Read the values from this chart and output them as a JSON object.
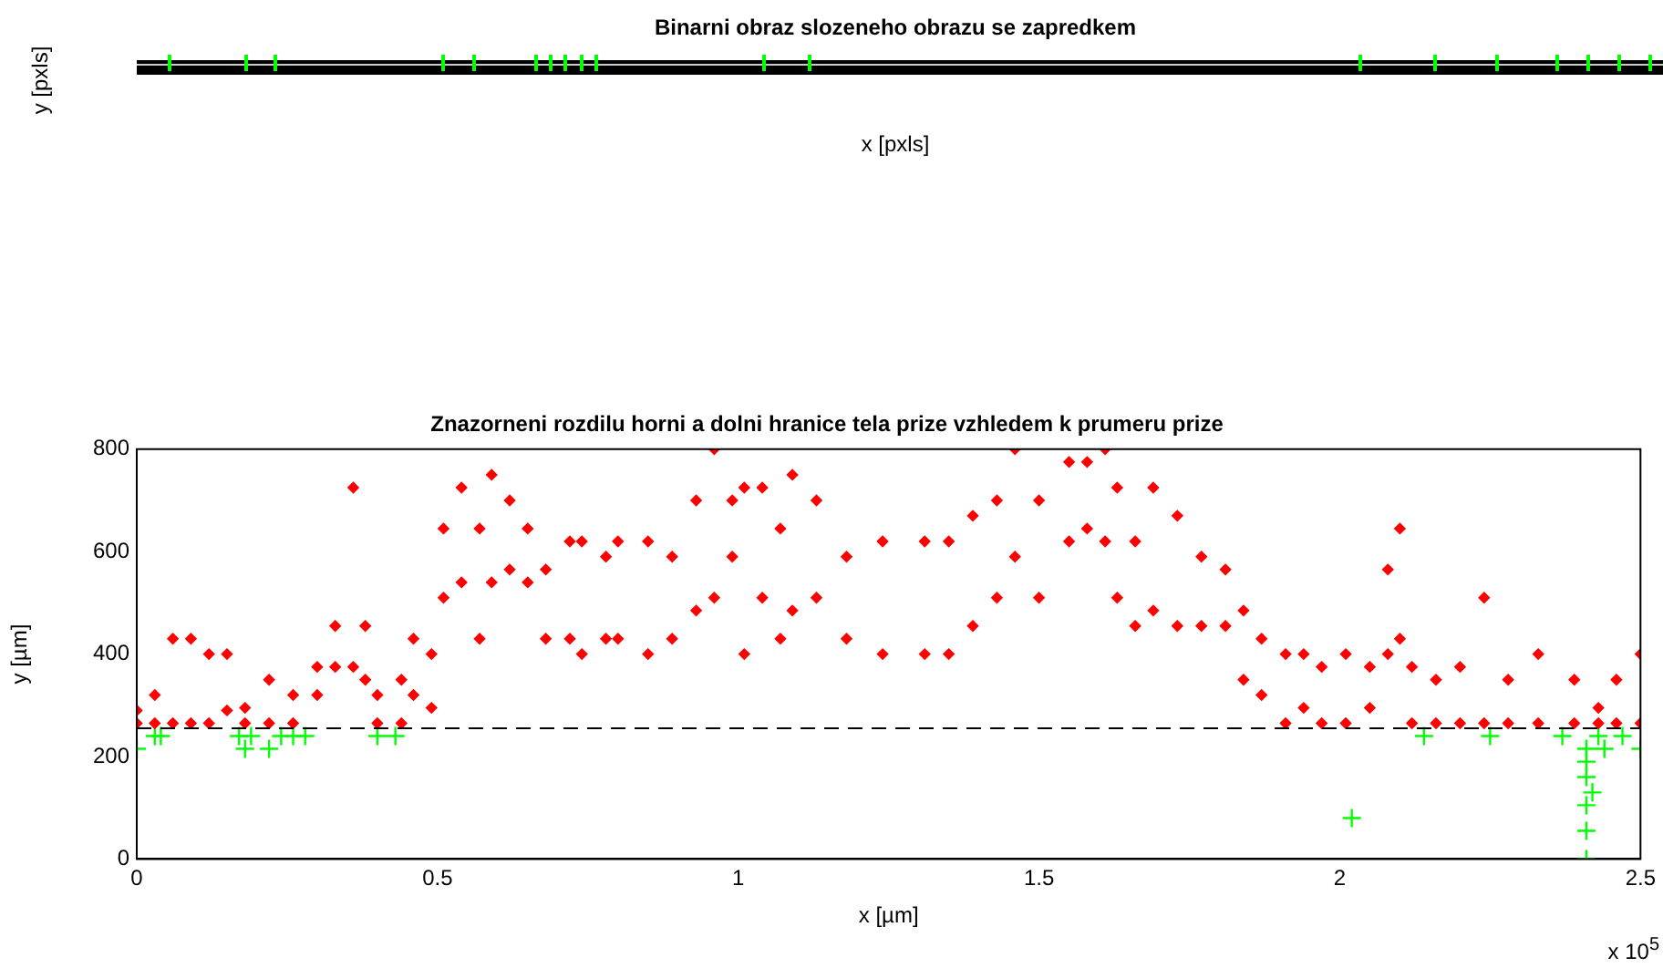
{
  "chart_data": [
    {
      "type": "other",
      "title": "Binarni obraz slozeneho obrazu se zapredkem",
      "xlabel": "x [pxls]",
      "ylabel": "y [pxls]"
    },
    {
      "type": "scatter",
      "title": "Znazorneni rozdilu horni a dolni hranice tela prize vzhledem k prumeru prize",
      "xlabel": "x [µm]",
      "ylabel": "y [µm]",
      "xlim": [
        0,
        2.5
      ],
      "ylim": [
        0,
        800
      ],
      "xticks": [
        0,
        0.5,
        1,
        1.5,
        2,
        2.5
      ],
      "yticks": [
        0,
        200,
        400,
        600,
        800
      ],
      "grid": false,
      "legend": false,
      "annotations": [
        "x 10$^{5}$"
      ],
      "ref_lines": [
        {
          "axis": "y",
          "value": 255,
          "color": "#000000",
          "line_style": "dashed"
        }
      ],
      "series": [
        {
          "color": "#ff0000",
          "marker": "diamond",
          "x": [
            0,
            0,
            0.03,
            0.03,
            0.06,
            0.06,
            0.09,
            0.09,
            0.12,
            0.12,
            0.15,
            0.15,
            0.18,
            0.18,
            0.22,
            0.22,
            0.26,
            0.26,
            0.3,
            0.3,
            0.33,
            0.33,
            0.36,
            0.36,
            0.38,
            0.38,
            0.4,
            0.4,
            0.44,
            0.44,
            0.46,
            0.46,
            0.49,
            0.49,
            0.51,
            0.51,
            0.54,
            0.54,
            0.57,
            0.57,
            0.59,
            0.59,
            0.62,
            0.62,
            0.65,
            0.65,
            0.68,
            0.68,
            0.72,
            0.72,
            0.74,
            0.74,
            0.78,
            0.78,
            0.8,
            0.8,
            0.85,
            0.85,
            0.89,
            0.89,
            0.93,
            0.93,
            0.96,
            0.96,
            0.99,
            0.99,
            1.01,
            1.01,
            1.04,
            1.04,
            1.07,
            1.07,
            1.09,
            1.09,
            1.13,
            1.13,
            1.18,
            1.18,
            1.24,
            1.24,
            1.31,
            1.31,
            1.35,
            1.35,
            1.39,
            1.39,
            1.43,
            1.43,
            1.46,
            1.46,
            1.5,
            1.5,
            1.55,
            1.55,
            1.58,
            1.58,
            1.61,
            1.61,
            1.63,
            1.63,
            1.66,
            1.66,
            1.69,
            1.69,
            1.73,
            1.73,
            1.77,
            1.77,
            1.81,
            1.81,
            1.84,
            1.84,
            1.87,
            1.87,
            1.91,
            1.91,
            1.94,
            1.94,
            1.97,
            1.97,
            2.01,
            2.01,
            2.05,
            2.05,
            2.08,
            2.08,
            2.1,
            2.1,
            2.12,
            2.12,
            2.16,
            2.16,
            2.2,
            2.2,
            2.24,
            2.24,
            2.28,
            2.28,
            2.33,
            2.33,
            2.39,
            2.39,
            2.43,
            2.43,
            2.46,
            2.46,
            2.5,
            2.5
          ],
          "values": [
            290,
            265,
            320,
            265,
            430,
            265,
            430,
            265,
            400,
            265,
            400,
            290,
            295,
            265,
            350,
            265,
            320,
            265,
            375,
            320,
            455,
            375,
            725,
            375,
            455,
            350,
            320,
            265,
            350,
            265,
            430,
            320,
            400,
            295,
            645,
            510,
            725,
            540,
            645,
            430,
            750,
            540,
            700,
            565,
            645,
            540,
            565,
            430,
            620,
            430,
            620,
            400,
            590,
            430,
            620,
            430,
            620,
            400,
            590,
            430,
            700,
            485,
            800,
            510,
            700,
            590,
            725,
            400,
            725,
            510,
            645,
            430,
            750,
            485,
            700,
            510,
            590,
            430,
            620,
            400,
            620,
            400,
            620,
            400,
            670,
            455,
            700,
            510,
            800,
            590,
            700,
            510,
            775,
            620,
            775,
            645,
            800,
            620,
            725,
            510,
            620,
            455,
            725,
            485,
            670,
            455,
            590,
            455,
            565,
            455,
            485,
            350,
            430,
            320,
            400,
            265,
            400,
            295,
            375,
            265,
            400,
            265,
            375,
            295,
            565,
            400,
            645,
            430,
            375,
            265,
            350,
            265,
            375,
            265,
            510,
            265,
            350,
            265,
            400,
            265,
            350,
            265,
            295,
            265,
            350,
            265,
            400,
            265
          ]
        },
        {
          "color": "#00ff00",
          "marker": "cross",
          "x": [
            0,
            0.03,
            0.04,
            0.17,
            0.18,
            0.19,
            0.22,
            0.24,
            0.26,
            0.28,
            0.4,
            0.43,
            2.02,
            2.14,
            2.25,
            2.37,
            2.41,
            2.41,
            2.41,
            2.42,
            2.41,
            2.41,
            2.41,
            2.43,
            2.44,
            2.47,
            2.5
          ],
          "values": [
            215,
            240,
            240,
            240,
            215,
            240,
            215,
            240,
            240,
            240,
            240,
            240,
            80,
            240,
            240,
            240,
            215,
            190,
            160,
            130,
            105,
            55,
            0,
            240,
            215,
            240,
            215
          ]
        }
      ]
    }
  ]
}
